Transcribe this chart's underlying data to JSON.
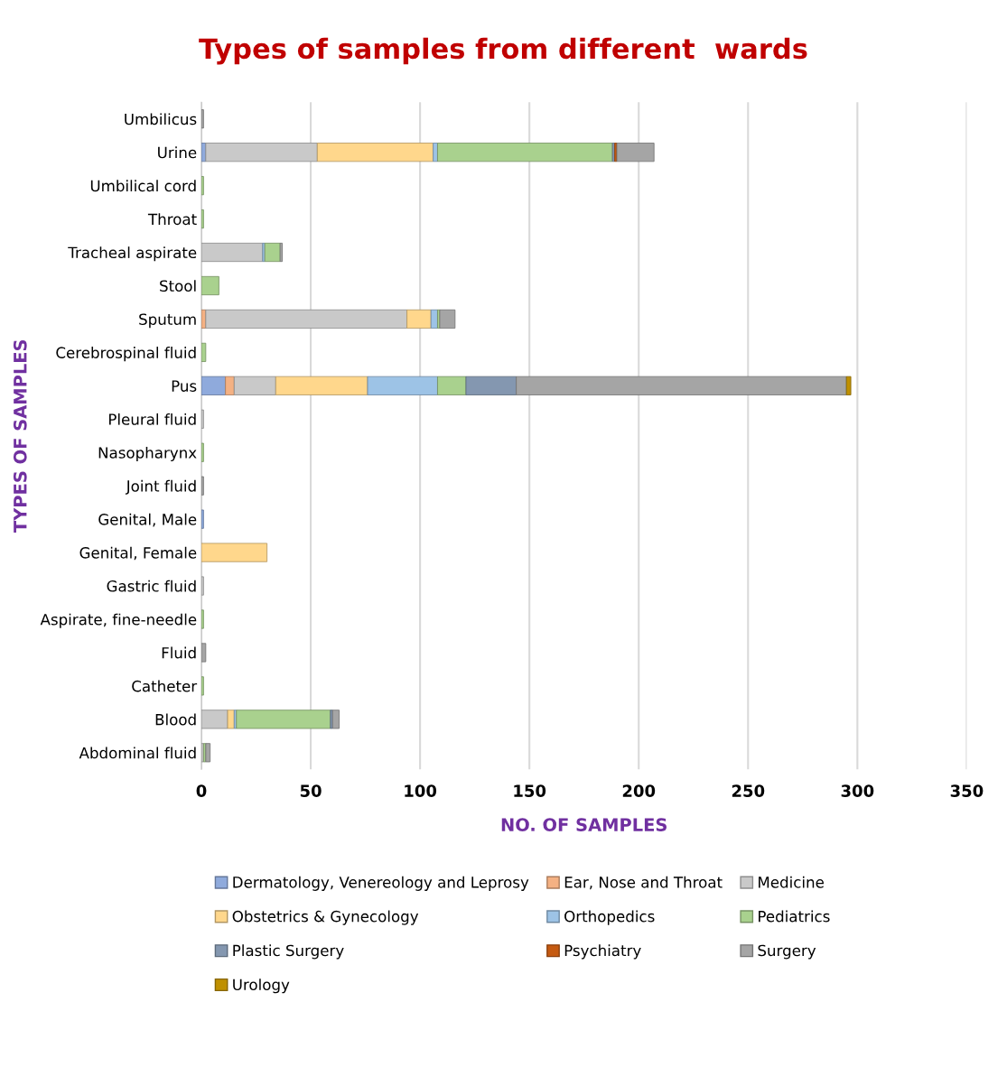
{
  "chart_data": {
    "type": "bar",
    "orientation": "horizontal",
    "stacked": true,
    "title": "Types of samples from different  wards",
    "xlabel": "NO. OF SAMPLES",
    "ylabel": "TYPES OF SAMPLES",
    "categories": [
      "Umbilicus",
      "Urine",
      "Umbilical cord",
      "Throat",
      "Tracheal aspirate",
      "Stool",
      "Sputum",
      "Cerebrospinal fluid",
      "Pus",
      "Pleural fluid",
      "Nasopharynx",
      "Joint fluid",
      "Genital, Male",
      "Genital, Female",
      "Gastric fluid",
      "Aspirate, fine-needle",
      "Fluid",
      "Catheter",
      "Blood",
      "Abdominal fluid"
    ],
    "series": [
      {
        "name": "Dermatology, Venereology and Leprosy",
        "color": "#8faadc",
        "values": [
          null,
          2,
          null,
          null,
          null,
          null,
          null,
          null,
          11,
          null,
          null,
          null,
          1,
          null,
          null,
          null,
          null,
          null,
          null,
          null
        ]
      },
      {
        "name": "Ear, Nose and Throat",
        "color": "#f4b183",
        "values": [
          null,
          null,
          null,
          null,
          null,
          null,
          2,
          null,
          4,
          null,
          null,
          null,
          null,
          null,
          null,
          null,
          null,
          null,
          null,
          null
        ]
      },
      {
        "name": "Medicine",
        "color": "#c9c9c9",
        "values": [
          null,
          51,
          null,
          null,
          28,
          null,
          92,
          null,
          19,
          1,
          null,
          null,
          null,
          null,
          1,
          null,
          null,
          null,
          12,
          1
        ]
      },
      {
        "name": "Obstetrics & Gynecology",
        "color": "#ffd78c",
        "values": [
          null,
          53,
          null,
          null,
          null,
          null,
          11,
          null,
          42,
          null,
          null,
          null,
          null,
          30,
          null,
          null,
          null,
          null,
          3,
          null
        ]
      },
      {
        "name": "Orthopedics",
        "color": "#9dc3e6",
        "values": [
          null,
          2,
          null,
          null,
          1,
          null,
          3,
          null,
          32,
          null,
          null,
          null,
          null,
          null,
          null,
          null,
          null,
          null,
          1,
          null
        ]
      },
      {
        "name": "Pediatrics",
        "color": "#a9d18e",
        "values": [
          null,
          80,
          1,
          1,
          7,
          8,
          1,
          2,
          13,
          null,
          1,
          null,
          null,
          null,
          null,
          1,
          null,
          1,
          43,
          1
        ]
      },
      {
        "name": "Plastic Surgery",
        "color": "#8497b0",
        "values": [
          null,
          1,
          null,
          null,
          null,
          null,
          null,
          null,
          23,
          null,
          null,
          null,
          null,
          null,
          null,
          null,
          null,
          null,
          1,
          null
        ]
      },
      {
        "name": "Psychiatry",
        "color": "#c55a11",
        "values": [
          null,
          1,
          null,
          null,
          null,
          null,
          null,
          null,
          null,
          null,
          null,
          null,
          null,
          null,
          null,
          null,
          null,
          null,
          null,
          null
        ]
      },
      {
        "name": "Surgery",
        "color": "#a5a5a5",
        "values": [
          1,
          17,
          null,
          null,
          1,
          null,
          7,
          null,
          151,
          null,
          null,
          1,
          null,
          null,
          null,
          null,
          2,
          null,
          3,
          2
        ]
      },
      {
        "name": "Urology",
        "color": "#bf9000",
        "values": [
          null,
          null,
          null,
          null,
          null,
          null,
          null,
          null,
          2,
          null,
          null,
          null,
          null,
          null,
          null,
          null,
          null,
          null,
          null,
          null
        ]
      }
    ],
    "xlim": [
      0,
      350
    ],
    "xticks": [
      0,
      50,
      100,
      150,
      200,
      250,
      300,
      350
    ],
    "grid": "x",
    "legend": "bottom"
  }
}
